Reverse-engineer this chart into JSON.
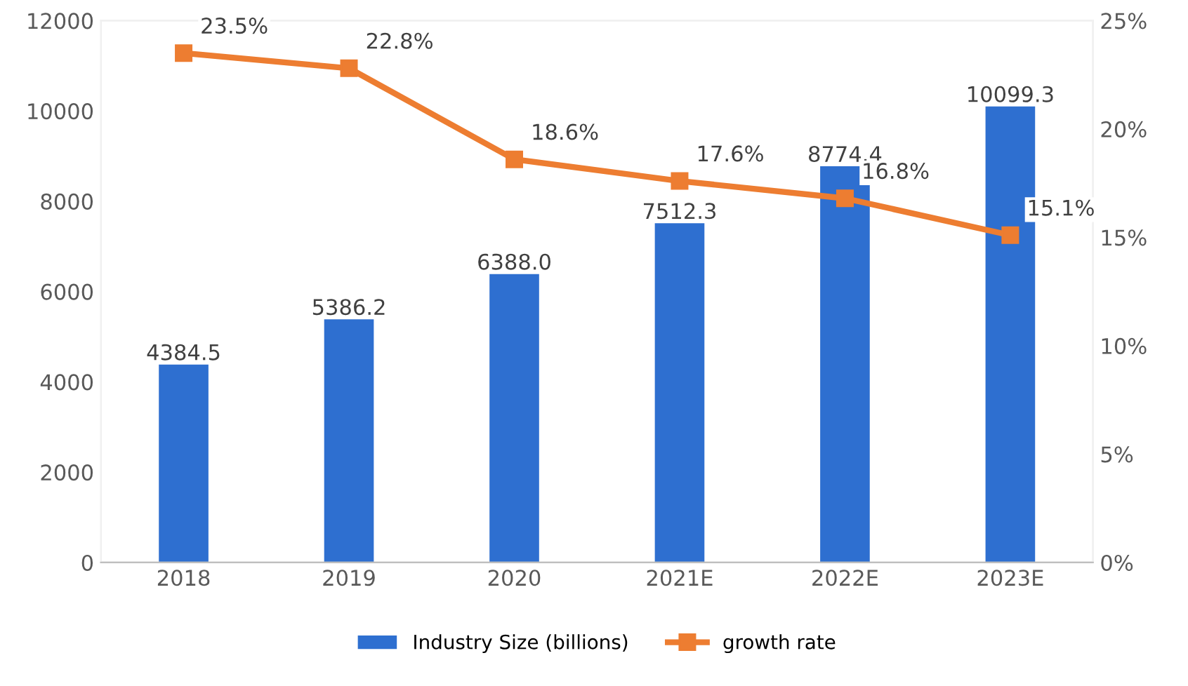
{
  "chart_data": {
    "type": "bar",
    "categories": [
      "2018",
      "2019",
      "2020",
      "2021E",
      "2022E",
      "2023E"
    ],
    "series": [
      {
        "name": "Industry Size (billions)",
        "color": "#2e6fd0",
        "values": [
          4384.5,
          5386.2,
          6388.0,
          7512.3,
          8774.4,
          10099.3
        ],
        "value_labels": [
          "4384.5",
          "5386.2",
          "6388.0",
          "7512.3",
          "8774.4",
          "10099.3"
        ]
      },
      {
        "name": "growth rate",
        "type": "line",
        "axis": "y2",
        "color": "#ed7d31",
        "marker": "square",
        "values": [
          23.5,
          22.8,
          18.6,
          17.6,
          16.8,
          15.1
        ],
        "value_labels": [
          "23.5%",
          "22.8%",
          "18.6%",
          "17.6%",
          "16.8%",
          "15.1%"
        ]
      }
    ],
    "ylim": [
      0,
      12000
    ],
    "yticks": [
      0,
      2000,
      4000,
      6000,
      8000,
      10000,
      12000
    ],
    "y2lim": [
      0,
      25
    ],
    "y2ticks": [
      {
        "value": 0,
        "label": "0%"
      },
      {
        "value": 5,
        "label": "5%"
      },
      {
        "value": 10,
        "label": "10%"
      },
      {
        "value": 15,
        "label": "15%"
      },
      {
        "value": 20,
        "label": "20%"
      },
      {
        "value": 25,
        "label": "25%"
      }
    ],
    "legend": "bottom",
    "grid": false
  }
}
